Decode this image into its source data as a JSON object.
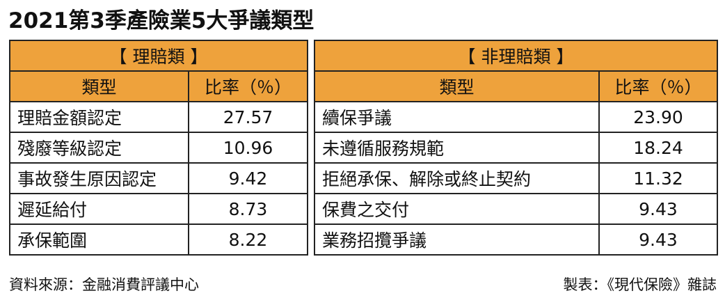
{
  "title": "2021第3季產險業5大爭議類型",
  "tables": [
    {
      "heading": "【 理賠類 】",
      "columns": [
        "類型",
        "比率（％）"
      ],
      "rows": [
        [
          "理賠金額認定",
          "27.57"
        ],
        [
          "殘廢等級認定",
          "10.96"
        ],
        [
          "事故發生原因認定",
          "9.42"
        ],
        [
          "遲延給付",
          "8.73"
        ],
        [
          "承保範圍",
          "8.22"
        ]
      ]
    },
    {
      "heading": "【 非理賠類 】",
      "columns": [
        "類型",
        "比率（％）"
      ],
      "rows": [
        [
          "續保爭議",
          "23.90"
        ],
        [
          "未遵循服務規範",
          "18.24"
        ],
        [
          "拒絕承保、解除或終止契約",
          "11.32"
        ],
        [
          "保費之交付",
          "9.43"
        ],
        [
          "業務招攬爭議",
          "9.43"
        ]
      ]
    }
  ],
  "footer": {
    "source": "資料來源：金融消費評議中心",
    "credit": "製表：《現代保險》雜誌"
  }
}
